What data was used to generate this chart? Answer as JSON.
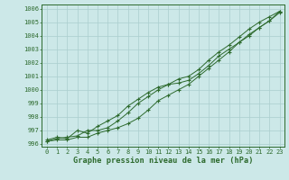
{
  "title": "Graphe pression niveau de la mer (hPa)",
  "x_labels": [
    "0",
    "1",
    "2",
    "3",
    "4",
    "5",
    "6",
    "7",
    "8",
    "9",
    "10",
    "11",
    "12",
    "13",
    "14",
    "15",
    "16",
    "17",
    "18",
    "19",
    "20",
    "21",
    "22",
    "23"
  ],
  "x_values": [
    0,
    1,
    2,
    3,
    4,
    5,
    6,
    7,
    8,
    9,
    10,
    11,
    12,
    13,
    14,
    15,
    16,
    17,
    18,
    19,
    20,
    21,
    22,
    23
  ],
  "line1": [
    996.3,
    996.5,
    996.4,
    997.0,
    996.8,
    997.3,
    997.7,
    998.1,
    998.8,
    999.3,
    999.8,
    1000.2,
    1000.4,
    1000.5,
    1000.7,
    1001.2,
    1001.8,
    1002.5,
    1003.0,
    1003.5,
    1004.0,
    1004.6,
    1005.1,
    1005.7
  ],
  "line2": [
    996.2,
    996.4,
    996.5,
    996.6,
    997.0,
    997.0,
    997.2,
    997.7,
    998.3,
    999.0,
    999.5,
    1000.0,
    1000.4,
    1000.8,
    1001.0,
    1001.5,
    1002.2,
    1002.8,
    1003.3,
    1003.9,
    1004.5,
    1005.0,
    1005.4,
    1005.8
  ],
  "line3": [
    996.2,
    996.3,
    996.3,
    996.5,
    996.5,
    996.8,
    997.0,
    997.2,
    997.5,
    997.9,
    998.5,
    999.2,
    999.6,
    1000.0,
    1000.4,
    1001.0,
    1001.6,
    1002.2,
    1002.8,
    1003.5,
    1004.1,
    1004.6,
    1005.1,
    1005.8
  ],
  "line_color": "#2d6a2d",
  "bg_color": "#cce8e8",
  "grid_color": "#aacece",
  "ylim": [
    995.8,
    1006.3
  ],
  "yticks": [
    996,
    997,
    998,
    999,
    1000,
    1001,
    1002,
    1003,
    1004,
    1005,
    1006
  ],
  "tick_label_fontsize": 5.0,
  "xlabel_fontsize": 6.2,
  "marker": "+"
}
